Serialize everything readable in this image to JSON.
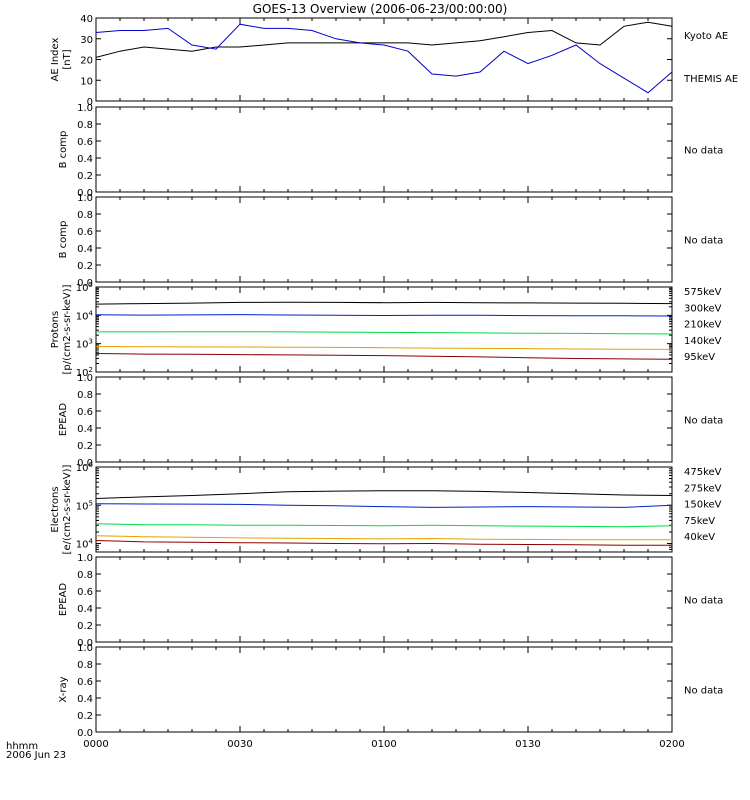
{
  "title": "GOES-13 Overview (2006-06-23/00:00:00)",
  "footer": {
    "line1": "hhmm",
    "line2": "2006 Jun 23"
  },
  "x_ticks": [
    "0000",
    "0030",
    "0100",
    "0130",
    "0200"
  ],
  "chart_data": [
    {
      "type": "line",
      "panel": "ae",
      "ylabel_lines": [
        "AE Index",
        "[nT]"
      ],
      "ylim": [
        0,
        40
      ],
      "yticks": [
        0,
        10,
        20,
        30,
        40
      ],
      "x": [
        0,
        5,
        10,
        15,
        20,
        25,
        30,
        35,
        40,
        45,
        50,
        55,
        60,
        65,
        70,
        75,
        80,
        85,
        90,
        95,
        100,
        105,
        110,
        115,
        120
      ],
      "series": [
        {
          "name": "Kyoto AE",
          "color": "#000000",
          "values": [
            21,
            24,
            26,
            25,
            24,
            26,
            26,
            27,
            28,
            28,
            28,
            28,
            28,
            28,
            27,
            28,
            29,
            31,
            33,
            34,
            28,
            27,
            36,
            38,
            36
          ]
        },
        {
          "name": "THEMIS AE",
          "color": "#0000cc",
          "values": [
            33,
            34,
            34,
            35,
            27,
            25,
            37,
            35,
            35,
            34,
            30,
            28,
            27,
            24,
            13,
            12,
            14,
            24,
            18,
            22,
            27,
            18,
            11,
            4,
            14
          ]
        }
      ]
    },
    {
      "type": "line",
      "panel": "empty",
      "ylabel_lines": [
        "B comp"
      ],
      "note": "No data",
      "ylim": [
        0,
        1
      ],
      "yticks": [
        0.0,
        0.2,
        0.4,
        0.6,
        0.8,
        1.0
      ]
    },
    {
      "type": "line",
      "panel": "empty",
      "ylabel_lines": [
        "B comp"
      ],
      "note": "No data",
      "ylim": [
        0,
        1
      ],
      "yticks": [
        0.0,
        0.2,
        0.4,
        0.6,
        0.8,
        1.0
      ]
    },
    {
      "type": "line",
      "panel": "protons",
      "scale": "log",
      "ylabel_lines": [
        "Protons",
        "[p/(cm2-s-sr-keV)]"
      ],
      "ylim": [
        100,
        100000
      ],
      "yticks": [
        100,
        1000,
        10000,
        100000
      ],
      "ytick_labels": [
        "10^2",
        "10^3",
        "10^4",
        "10^5"
      ],
      "x": [
        0,
        10,
        20,
        30,
        40,
        50,
        60,
        70,
        80,
        90,
        100,
        110,
        120
      ],
      "series": [
        {
          "name": "575keV",
          "color": "#8b0000",
          "values": [
            450,
            430,
            420,
            410,
            400,
            390,
            380,
            360,
            340,
            320,
            300,
            290,
            280
          ]
        },
        {
          "name": "300keV",
          "color": "#e6a100",
          "values": [
            800,
            780,
            770,
            760,
            750,
            740,
            720,
            700,
            680,
            670,
            650,
            640,
            630
          ]
        },
        {
          "name": "210keV",
          "color": "#00dd44",
          "values": [
            2600,
            2600,
            2650,
            2650,
            2600,
            2550,
            2500,
            2450,
            2400,
            2350,
            2300,
            2250,
            2200
          ]
        },
        {
          "name": "140keV",
          "color": "#0022cc",
          "values": [
            10500,
            10200,
            10400,
            10600,
            10300,
            10000,
            9900,
            10100,
            10000,
            9800,
            9700,
            9600,
            9500
          ]
        },
        {
          "name": "95keV",
          "color": "#000000",
          "values": [
            25000,
            26000,
            27000,
            28500,
            29000,
            28500,
            28000,
            28500,
            28000,
            27500,
            27000,
            26500,
            26000
          ]
        }
      ]
    },
    {
      "type": "line",
      "panel": "empty",
      "ylabel_lines": [
        "EPEAD"
      ],
      "note": "No data",
      "ylim": [
        0,
        1
      ],
      "yticks": [
        0.0,
        0.2,
        0.4,
        0.6,
        0.8,
        1.0
      ]
    },
    {
      "type": "line",
      "panel": "electrons",
      "scale": "log",
      "ylabel_lines": [
        "Electrons",
        "[e/(cm2-s-sr-keV)]"
      ],
      "ylim": [
        6000,
        1000000
      ],
      "yticks": [
        10000,
        100000,
        1000000
      ],
      "ytick_labels": [
        "10^4",
        "10^5",
        "10^6"
      ],
      "x": [
        0,
        10,
        20,
        30,
        40,
        50,
        60,
        70,
        80,
        90,
        100,
        110,
        120
      ],
      "series": [
        {
          "name": "475keV",
          "color": "#8b0000",
          "values": [
            12000,
            11000,
            10800,
            10500,
            10300,
            10000,
            9800,
            10000,
            9600,
            9400,
            9300,
            9000,
            9000
          ]
        },
        {
          "name": "275keV",
          "color": "#e6a100",
          "values": [
            16000,
            15000,
            14500,
            14000,
            13800,
            13500,
            13200,
            13500,
            13000,
            12800,
            12500,
            12500,
            12500
          ]
        },
        {
          "name": "150keV",
          "color": "#00dd44",
          "values": [
            33000,
            31000,
            31000,
            30000,
            30000,
            29500,
            29000,
            30000,
            29000,
            28500,
            28000,
            27500,
            29000
          ]
        },
        {
          "name": "75keV",
          "color": "#0022cc",
          "values": [
            110000,
            108000,
            107000,
            105000,
            100000,
            97000,
            92000,
            88000,
            90000,
            92000,
            90000,
            88000,
            100000
          ]
        },
        {
          "name": "40keV",
          "color": "#000000",
          "values": [
            150000,
            165000,
            180000,
            200000,
            225000,
            235000,
            240000,
            240000,
            230000,
            215000,
            200000,
            185000,
            180000
          ]
        }
      ]
    },
    {
      "type": "line",
      "panel": "empty",
      "ylabel_lines": [
        "EPEAD"
      ],
      "note": "No data",
      "ylim": [
        0,
        1
      ],
      "yticks": [
        0.0,
        0.2,
        0.4,
        0.6,
        0.8,
        1.0
      ]
    },
    {
      "type": "line",
      "panel": "empty",
      "ylabel_lines": [
        "X-ray"
      ],
      "note": "No data",
      "ylim": [
        0,
        1
      ],
      "yticks": [
        0.0,
        0.2,
        0.4,
        0.6,
        0.8,
        1.0
      ]
    }
  ]
}
